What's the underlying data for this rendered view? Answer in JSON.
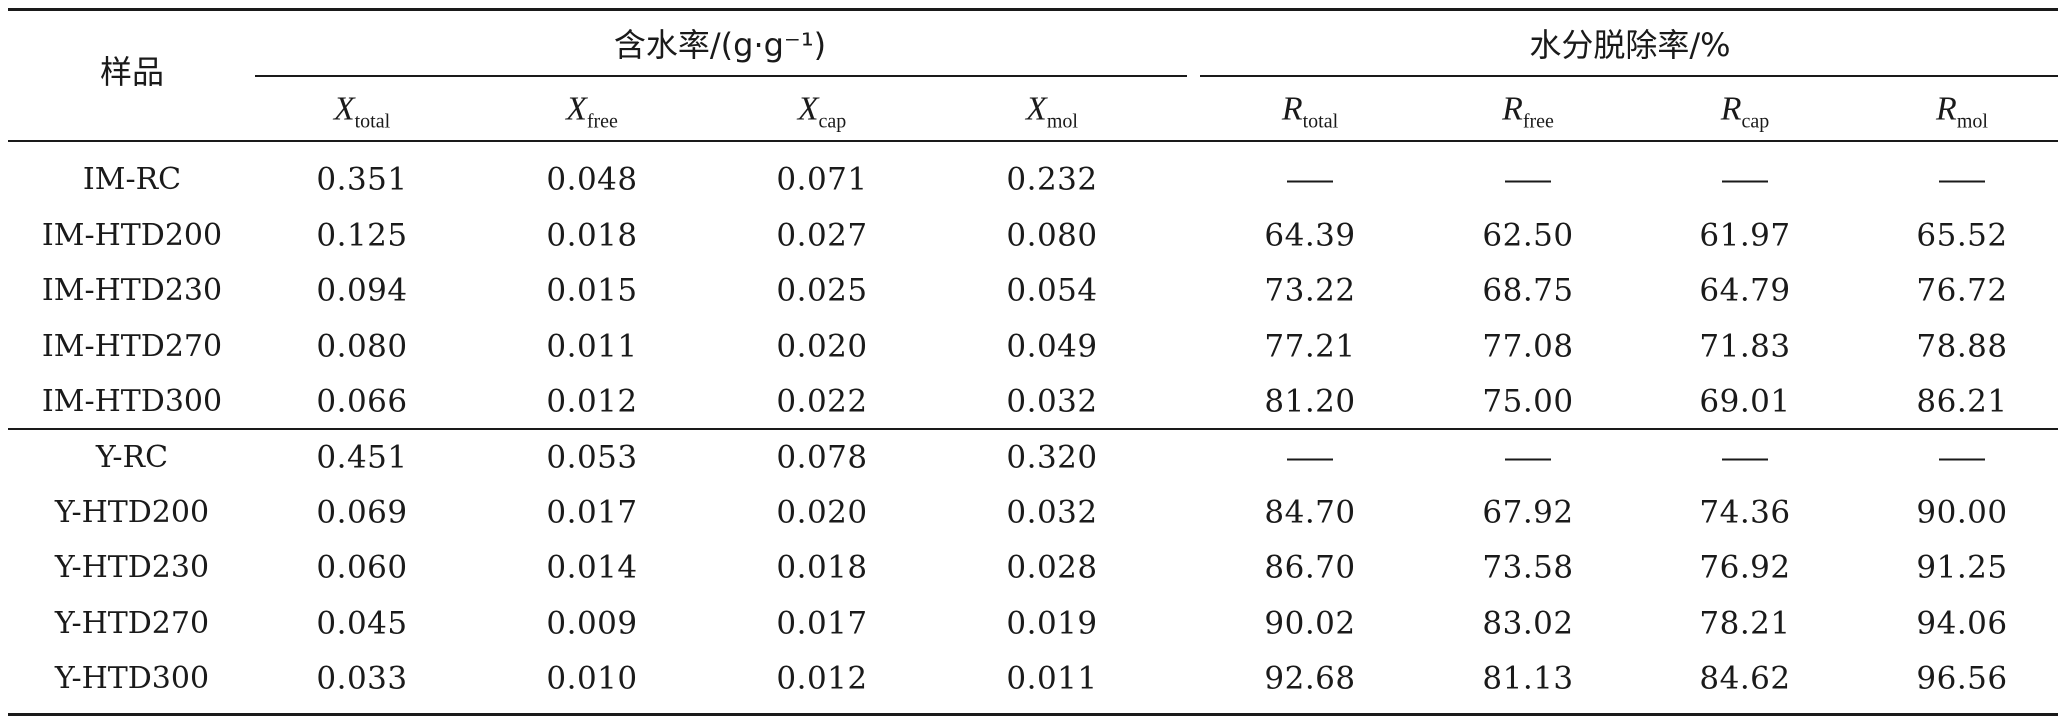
{
  "header": {
    "sample": "样品",
    "moisture_group": "含水率/(g·g⁻¹)",
    "removal_group": "水分脱除率/%",
    "sub": [
      {
        "sym": "X",
        "sub": "total"
      },
      {
        "sym": "X",
        "sub": "free"
      },
      {
        "sym": "X",
        "sub": "cap"
      },
      {
        "sym": "X",
        "sub": "mol"
      },
      {
        "sym": "R",
        "sub": "total"
      },
      {
        "sym": "R",
        "sub": "free"
      },
      {
        "sym": "R",
        "sub": "cap"
      },
      {
        "sym": "R",
        "sub": "mol"
      }
    ]
  },
  "rows": [
    {
      "sample": "IM-RC",
      "values": [
        "0.351",
        "0.048",
        "0.071",
        "0.232",
        "—",
        "—",
        "—",
        "—"
      ]
    },
    {
      "sample": "IM-HTD200",
      "values": [
        "0.125",
        "0.018",
        "0.027",
        "0.080",
        "64.39",
        "62.50",
        "61.97",
        "65.52"
      ]
    },
    {
      "sample": "IM-HTD230",
      "values": [
        "0.094",
        "0.015",
        "0.025",
        "0.054",
        "73.22",
        "68.75",
        "64.79",
        "76.72"
      ]
    },
    {
      "sample": "IM-HTD270",
      "values": [
        "0.080",
        "0.011",
        "0.020",
        "0.049",
        "77.21",
        "77.08",
        "71.83",
        "78.88"
      ]
    },
    {
      "sample": "IM-HTD300",
      "values": [
        "0.066",
        "0.012",
        "0.022",
        "0.032",
        "81.20",
        "75.00",
        "69.01",
        "86.21"
      ]
    },
    {
      "sample": "Y-RC",
      "values": [
        "0.451",
        "0.053",
        "0.078",
        "0.320",
        "—",
        "—",
        "—",
        "—"
      ]
    },
    {
      "sample": "Y-HTD200",
      "values": [
        "0.069",
        "0.017",
        "0.020",
        "0.032",
        "84.70",
        "67.92",
        "74.36",
        "90.00"
      ]
    },
    {
      "sample": "Y-HTD230",
      "values": [
        "0.060",
        "0.014",
        "0.018",
        "0.028",
        "86.70",
        "73.58",
        "76.92",
        "91.25"
      ]
    },
    {
      "sample": "Y-HTD270",
      "values": [
        "0.045",
        "0.009",
        "0.017",
        "0.019",
        "90.02",
        "83.02",
        "78.21",
        "94.06"
      ]
    },
    {
      "sample": "Y-HTD300",
      "values": [
        "0.033",
        "0.010",
        "0.012",
        "0.011",
        "92.68",
        "81.13",
        "84.62",
        "96.56"
      ]
    }
  ]
}
